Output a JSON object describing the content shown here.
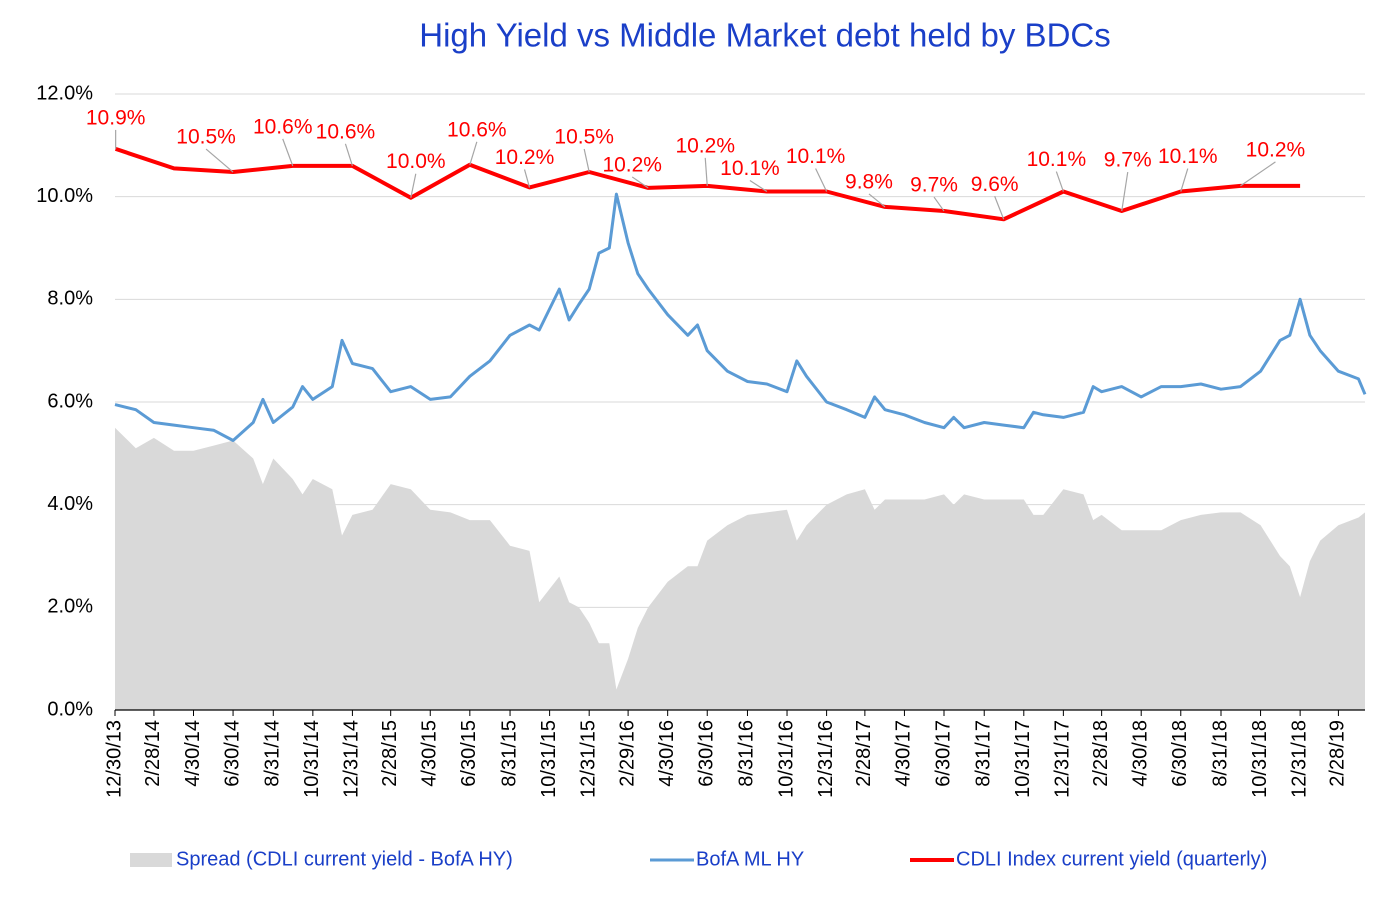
{
  "chart_data": {
    "type": "line",
    "title": "High Yield  vs  Middle Market debt held by BDCs",
    "x": [
      "12/30/13",
      "1/31/14",
      "2/28/14",
      "3/31/14",
      "4/30/14",
      "5/31/14",
      "6/30/14",
      "7/31/14",
      "8/15/14",
      "8/31/14",
      "9/30/14",
      "10/15/14",
      "10/31/14",
      "11/30/14",
      "12/15/14",
      "12/31/14",
      "1/31/15",
      "2/28/15",
      "3/31/15",
      "4/30/15",
      "5/31/15",
      "6/30/15",
      "7/31/15",
      "8/31/15",
      "9/30/15",
      "10/15/15",
      "11/15/15",
      "11/30/15",
      "12/15/15",
      "12/31/15",
      "1/15/16",
      "1/31/16",
      "2/11/16",
      "2/29/16",
      "3/15/16",
      "3/31/16",
      "4/30/16",
      "5/31/16",
      "6/15/16",
      "6/30/16",
      "7/31/16",
      "8/31/16",
      "9/30/16",
      "10/31/16",
      "11/15/16",
      "11/30/16",
      "12/31/16",
      "1/31/17",
      "2/28/17",
      "3/15/17",
      "3/31/17",
      "4/30/17",
      "5/31/17",
      "6/30/17",
      "7/15/17",
      "7/31/17",
      "8/31/17",
      "9/30/17",
      "10/31/17",
      "11/15/17",
      "11/30/17",
      "12/31/17",
      "1/31/18",
      "2/15/18",
      "2/28/18",
      "3/31/18",
      "4/30/18",
      "5/31/18",
      "6/30/18",
      "7/31/18",
      "8/31/18",
      "9/30/18",
      "10/31/18",
      "11/30/18",
      "12/15/18",
      "12/31/18",
      "1/15/19",
      "1/31/19",
      "2/28/19",
      "3/31/19",
      "4/10/19"
    ],
    "xlim": [
      "12/30/13",
      "4/10/19"
    ],
    "xticks": [
      "12/30/13",
      "2/28/14",
      "4/30/14",
      "6/30/14",
      "8/31/14",
      "10/31/14",
      "12/31/14",
      "2/28/15",
      "4/30/15",
      "6/30/15",
      "8/31/15",
      "10/31/15",
      "12/31/15",
      "2/29/16",
      "4/30/16",
      "6/30/16",
      "8/31/16",
      "10/31/16",
      "12/31/16",
      "2/28/17",
      "4/30/17",
      "6/30/17",
      "8/31/17",
      "10/31/17",
      "12/31/17",
      "2/28/18",
      "4/30/18",
      "6/30/18",
      "8/31/18",
      "10/31/18",
      "12/31/18",
      "2/28/19"
    ],
    "ylim": [
      0,
      12
    ],
    "yticks": [
      {
        "value": 0,
        "label": "0.0%"
      },
      {
        "value": 2,
        "label": "2.0%"
      },
      {
        "value": 4,
        "label": "4.0%"
      },
      {
        "value": 6,
        "label": "6.0%"
      },
      {
        "value": 8,
        "label": "8.0%"
      },
      {
        "value": 10,
        "label": "10.0%"
      },
      {
        "value": 12,
        "label": "12.0%"
      }
    ],
    "grid": true,
    "legend": "bottom",
    "series": [
      {
        "name": "Spread (CDLI current yield - BofA HY)",
        "type": "area",
        "color": "#d9d9d9",
        "values": [
          5.5,
          5.1,
          5.3,
          5.05,
          5.05,
          5.15,
          5.25,
          4.9,
          4.4,
          4.9,
          4.5,
          4.2,
          4.5,
          4.3,
          3.4,
          3.8,
          3.9,
          4.4,
          4.3,
          3.9,
          3.85,
          3.7,
          3.7,
          3.2,
          3.1,
          2.1,
          2.6,
          2.1,
          2.0,
          1.7,
          1.3,
          1.3,
          0.4,
          1.0,
          1.6,
          2.0,
          2.5,
          2.8,
          2.8,
          3.3,
          3.6,
          3.8,
          3.85,
          3.9,
          3.3,
          3.6,
          4.0,
          4.2,
          4.3,
          3.9,
          4.1,
          4.1,
          4.1,
          4.2,
          4.0,
          4.2,
          4.1,
          4.1,
          4.1,
          3.8,
          3.8,
          4.3,
          4.2,
          3.7,
          3.8,
          3.5,
          3.5,
          3.5,
          3.7,
          3.8,
          3.85,
          3.85,
          3.6,
          3.0,
          2.8,
          2.2,
          2.9,
          3.3,
          3.6,
          3.75,
          3.85
        ]
      },
      {
        "name": "BofA ML HY",
        "type": "line",
        "color": "#5b9bd5",
        "values": [
          5.95,
          5.85,
          5.6,
          5.55,
          5.5,
          5.45,
          5.25,
          5.6,
          6.05,
          5.6,
          5.9,
          6.3,
          6.05,
          6.3,
          7.2,
          6.75,
          6.65,
          6.2,
          6.3,
          6.05,
          6.1,
          6.5,
          6.8,
          7.3,
          7.5,
          7.4,
          8.2,
          7.6,
          7.9,
          8.2,
          8.9,
          9.0,
          10.05,
          9.1,
          8.5,
          8.2,
          7.7,
          7.3,
          7.5,
          7.0,
          6.6,
          6.4,
          6.35,
          6.2,
          6.8,
          6.5,
          6.0,
          5.85,
          5.7,
          6.1,
          5.85,
          5.75,
          5.6,
          5.5,
          5.7,
          5.5,
          5.6,
          5.55,
          5.5,
          5.8,
          5.75,
          5.7,
          5.8,
          6.3,
          6.2,
          6.3,
          6.1,
          6.3,
          6.3,
          6.35,
          6.25,
          6.3,
          6.6,
          7.2,
          7.3,
          8.0,
          7.3,
          7.0,
          6.6,
          6.45,
          6.15
        ]
      },
      {
        "name": "CDLI Index current yield (quarterly)",
        "type": "line",
        "color": "#ff0000",
        "x": [
          "12/31/13",
          "3/31/14",
          "6/30/14",
          "9/30/14",
          "12/31/14",
          "3/31/15",
          "6/30/15",
          "9/30/15",
          "12/31/15",
          "3/31/16",
          "6/30/16",
          "9/30/16",
          "12/31/16",
          "3/31/17",
          "6/30/17",
          "9/30/17",
          "12/31/17",
          "3/31/18",
          "6/30/18",
          "9/30/18",
          "12/31/18"
        ],
        "values": [
          10.93,
          10.55,
          10.48,
          10.6,
          10.6,
          9.98,
          10.62,
          10.18,
          10.48,
          10.17,
          10.21,
          10.1,
          10.1,
          9.8,
          9.72,
          9.56,
          10.1,
          9.72,
          10.1,
          10.21,
          10.21
        ],
        "value_labels": [
          "10.9%",
          null,
          "10.5%",
          "10.6%",
          "10.6%",
          "10.0%",
          "10.6%",
          "10.2%",
          "10.5%",
          "10.2%",
          "10.2%",
          "10.1%",
          "10.1%",
          "9.8%",
          "9.7%",
          "9.6%",
          "10.1%",
          "9.7%",
          "10.1%",
          "10.2%",
          null
        ]
      }
    ]
  }
}
